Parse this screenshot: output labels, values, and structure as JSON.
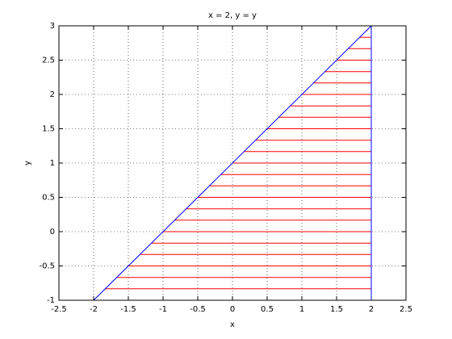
{
  "chart_data": {
    "type": "line",
    "title": "x = 2, y = y",
    "xlabel": "x",
    "ylabel": "y",
    "xlim": [
      -2.5,
      2.5
    ],
    "ylim": [
      -1,
      3
    ],
    "xticks": [
      -2.5,
      -2,
      -1.5,
      -1,
      -0.5,
      0,
      0.5,
      1,
      1.5,
      2,
      2.5
    ],
    "yticks": [
      -1,
      -0.5,
      0,
      0.5,
      1,
      1.5,
      2,
      2.5,
      3
    ],
    "grid": true,
    "series": [
      {
        "color": "#0000ff",
        "x": [
          -2,
          2
        ],
        "values": [
          -1,
          3
        ]
      },
      {
        "color": "#0000ff",
        "x": [
          2,
          2
        ],
        "values": [
          -1,
          3
        ]
      }
    ],
    "hatch": {
      "color": "#ff0000",
      "y": [
        -0.833,
        -0.667,
        -0.5,
        -0.333,
        -0.167,
        0,
        0.167,
        0.333,
        0.5,
        0.667,
        0.833,
        1,
        1.167,
        1.333,
        1.5,
        1.667,
        1.833,
        2,
        2.167,
        2.333,
        2.5,
        2.667,
        2.833
      ],
      "x_start": [
        -1.833,
        -1.667,
        -1.5,
        -1.333,
        -1.167,
        -1,
        -0.833,
        -0.667,
        -0.5,
        -0.333,
        -0.167,
        0,
        0.167,
        0.333,
        0.5,
        0.667,
        0.833,
        1,
        1.167,
        1.333,
        1.5,
        1.667,
        1.833
      ],
      "x_end": [
        2,
        2,
        2,
        2,
        2,
        2,
        2,
        2,
        2,
        2,
        2,
        2,
        2,
        2,
        2,
        2,
        2,
        2,
        2,
        2,
        2,
        2,
        2
      ]
    }
  }
}
